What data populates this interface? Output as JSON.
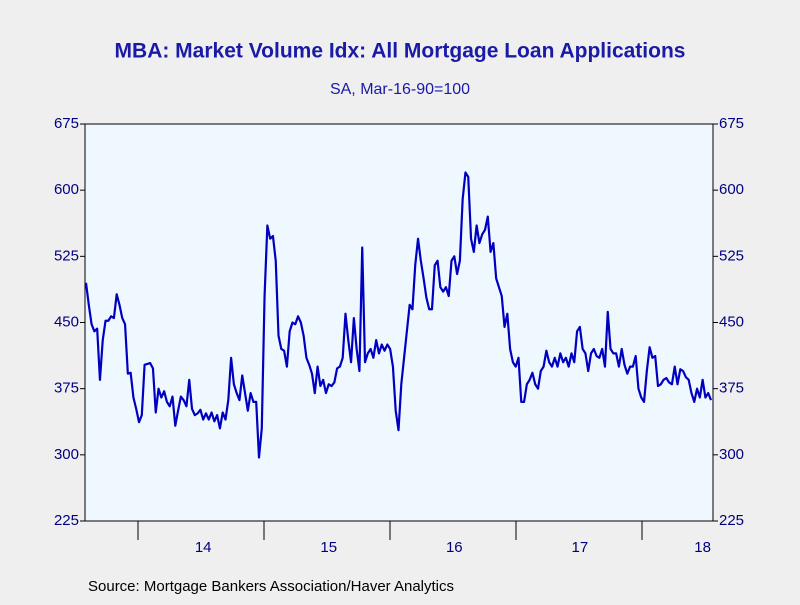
{
  "chart_data": {
    "type": "line",
    "title": "MBA: Market Volume Idx: All Mortgage Loan Applications",
    "subtitle": "SA, Mar-16-90=100",
    "source": "Source:  Mortgage Bankers Association/Haver Analytics",
    "categories": [
      null,
      null,
      null,
      null,
      null,
      null,
      null,
      null,
      null,
      null,
      null,
      null,
      null,
      null,
      null,
      null,
      null,
      null,
      null,
      null,
      null,
      null,
      null,
      null,
      null,
      null,
      null,
      null,
      null,
      null,
      null,
      null,
      null,
      null,
      null,
      null,
      null,
      null,
      null,
      null,
      null,
      null,
      "14",
      null,
      null,
      null,
      null,
      null,
      null,
      null,
      null,
      null,
      null,
      null,
      null,
      null,
      null,
      null,
      null,
      null,
      null,
      null,
      null,
      null,
      null,
      null,
      null,
      null,
      null,
      null,
      null,
      null,
      null,
      null,
      null,
      null,
      null,
      null,
      null,
      null,
      null,
      null,
      null,
      null,
      null,
      null,
      null,
      "15",
      null,
      null,
      null,
      null,
      null,
      null,
      null,
      null,
      null,
      null,
      null,
      null,
      null,
      null,
      null,
      null,
      null,
      null,
      null,
      null,
      null,
      null,
      null,
      null,
      null,
      null,
      null,
      null,
      null,
      null,
      null,
      null,
      null,
      null,
      null,
      null,
      null,
      null,
      null,
      null,
      null,
      null,
      null,
      null,
      "16",
      null,
      null,
      null,
      null,
      null,
      null,
      null,
      null,
      null,
      null,
      null,
      null,
      null,
      null,
      null,
      null,
      null,
      null,
      null,
      null,
      null,
      null,
      null,
      null,
      null,
      null,
      null,
      null,
      null,
      null,
      null,
      null,
      null,
      null,
      null,
      null,
      null,
      null,
      null,
      null,
      null,
      null,
      null,
      null,
      "17",
      null,
      null,
      null,
      null,
      null,
      null,
      null,
      null,
      null,
      null,
      null,
      null,
      null,
      null,
      null,
      null,
      null,
      null,
      null,
      null,
      null,
      null,
      null,
      null,
      null,
      null,
      null,
      null,
      null,
      null,
      null,
      null,
      null,
      null,
      null,
      null,
      null,
      null,
      null,
      null,
      null,
      null,
      null,
      "18",
      null,
      null,
      null
    ],
    "series": [
      {
        "name": "All Mortgage Loan Applications",
        "color": "#0000c0",
        "values": [
          495,
          470,
          448,
          440,
          443,
          385,
          430,
          452,
          452,
          457,
          455,
          482,
          470,
          455,
          448,
          392,
          393,
          365,
          352,
          337,
          345,
          402,
          403,
          404,
          398,
          348,
          375,
          365,
          372,
          360,
          355,
          366,
          333,
          350,
          366,
          362,
          355,
          385,
          352,
          345,
          347,
          351,
          340,
          347,
          340,
          348,
          338,
          345,
          330,
          348,
          340,
          362,
          410,
          380,
          370,
          362,
          390,
          370,
          350,
          370,
          360,
          360,
          297,
          330,
          480,
          560,
          545,
          548,
          520,
          435,
          420,
          418,
          400,
          440,
          450,
          448,
          457,
          450,
          435,
          410,
          402,
          392,
          370,
          400,
          378,
          385,
          370,
          380,
          378,
          382,
          398,
          400,
          410,
          460,
          430,
          405,
          455,
          420,
          395,
          535,
          405,
          415,
          420,
          410,
          430,
          415,
          425,
          418,
          425,
          420,
          400,
          350,
          328,
          380,
          410,
          440,
          470,
          465,
          515,
          545,
          520,
          500,
          478,
          465,
          465,
          515,
          520,
          490,
          485,
          490,
          480,
          520,
          525,
          505,
          520,
          590,
          620,
          615,
          545,
          530,
          560,
          540,
          550,
          555,
          570,
          530,
          540,
          500,
          490,
          480,
          445,
          460,
          420,
          405,
          400,
          410,
          360,
          360,
          380,
          385,
          393,
          380,
          375,
          395,
          400,
          418,
          405,
          400,
          410,
          400,
          415,
          405,
          410,
          400,
          415,
          405,
          440,
          445,
          420,
          415,
          395,
          415,
          420,
          412,
          410,
          420,
          400,
          462,
          420,
          415,
          415,
          400,
          420,
          402,
          392,
          400,
          400,
          412,
          375,
          365,
          360,
          395,
          422,
          410,
          412,
          378,
          380,
          385,
          387,
          382,
          380,
          400,
          380,
          397,
          395,
          388,
          385,
          370,
          360,
          375,
          365,
          385,
          365,
          370,
          362
        ]
      }
    ],
    "ylim": [
      225,
      675
    ],
    "yticks": [
      225,
      300,
      375,
      450,
      525,
      600,
      675
    ],
    "y2lim": [
      225,
      675
    ],
    "y2ticks": [
      225,
      300,
      375,
      450,
      525,
      600,
      675
    ],
    "grid": false
  }
}
